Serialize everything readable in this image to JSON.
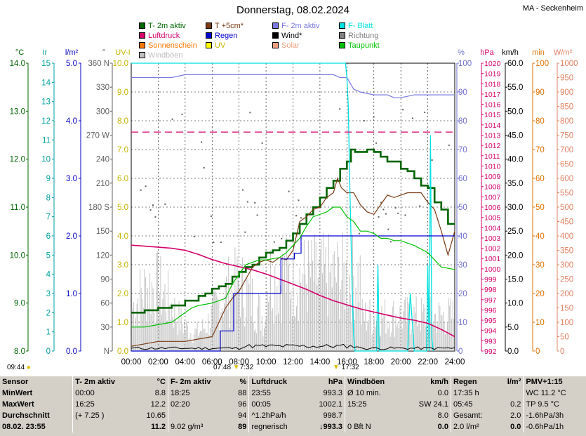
{
  "title": "Donnerstag, 08.02.2024",
  "station": "MA - Seckenheim",
  "legend": [
    {
      "label": "T- 2m aktiv",
      "color": "#006400"
    },
    {
      "label": "T +5cm*",
      "color": "#7a3a12"
    },
    {
      "label": "F- 2m aktiv",
      "color": "#7878e0"
    },
    {
      "label": "F- Blatt",
      "color": "#00e0e0"
    },
    {
      "label": "Luftdruck",
      "color": "#d4006c"
    },
    {
      "label": "Regen",
      "color": "#0000d0"
    },
    {
      "label": "Wind*",
      "color": "#000000"
    },
    {
      "label": "Richtung",
      "color": "#808080"
    },
    {
      "label": "Sonnenschein",
      "color": "#ff7800"
    },
    {
      "label": "UV",
      "color": "#ffff00"
    },
    {
      "label": "Solar",
      "color": "#f0a080"
    },
    {
      "label": "Taupunkt",
      "color": "#00c000"
    },
    {
      "label": "Windböen",
      "color": "#c0c0c0"
    }
  ],
  "axis_units": {
    "temp": "°C",
    "ir": "Ir",
    "rain": "l/m²",
    "dir": "°",
    "uv": "UV-I",
    "hum": "%",
    "press": "hPa",
    "wind": "km/h",
    "min": "min",
    "solar": "W/m²"
  },
  "axes": {
    "temp": [
      "8.0",
      "9.0",
      "10.0",
      "11.0",
      "12.0",
      "13.0",
      "14.0"
    ],
    "ir": [
      "0",
      "1",
      "2",
      "3",
      "4",
      "5",
      "6",
      "7",
      "8",
      "9",
      "10",
      "11",
      "12",
      "13",
      "14",
      "15"
    ],
    "rain": [
      "0.0",
      "1.0",
      "2.0",
      "3.0",
      "4.0",
      "5.0"
    ],
    "dir": [
      "N",
      "30",
      "60",
      "90",
      "120",
      "150",
      "180 S",
      "210",
      "240",
      "270 W",
      "300",
      "330",
      "360 N"
    ],
    "uv": [
      "0.0",
      "1.0",
      "2.0",
      "3.0",
      "4.0",
      "5.0",
      "6.0",
      "7.0",
      "8.0",
      "9.0",
      "10.0"
    ],
    "hum": [
      "0",
      "10",
      "20",
      "30",
      "40",
      "50",
      "60",
      "70",
      "80",
      "90",
      "100"
    ],
    "press": [
      "992",
      "993",
      "994",
      "995",
      "996",
      "997",
      "998",
      "999",
      "1000",
      "1001",
      "1002",
      "1003",
      "1004",
      "1005",
      "1006",
      "1007",
      "1008",
      "1009",
      "1010",
      "1011",
      "1012",
      "1013",
      "1014",
      "1015",
      "1016",
      "1017",
      "1018",
      "1019",
      "1020"
    ],
    "wind": [
      "0.0",
      "5.0",
      "10.0",
      "15.0",
      "20.0",
      "25.0",
      "30.0",
      "35.0",
      "40.0",
      "45.0",
      "50.0",
      "55.0",
      "60.0"
    ],
    "min": [
      "0",
      "10",
      "20",
      "30",
      "40",
      "50",
      "60",
      "70",
      "80",
      "90",
      "100"
    ],
    "solar": [
      "0",
      "50",
      "100",
      "150",
      "200",
      "250",
      "300",
      "350",
      "400",
      "450",
      "500",
      "550",
      "600",
      "650",
      "700",
      "750",
      "800",
      "850",
      "900",
      "950",
      "1000"
    ],
    "time": [
      "00:00",
      "02:00",
      "04:00",
      "06:00",
      "08:00",
      "10:00",
      "12:00",
      "14:00",
      "16:00",
      "18:00",
      "20:00",
      "22:00",
      "24:00"
    ]
  },
  "sun": {
    "rise": "07:48",
    "noon": "7:32",
    "noon_time": "17:32",
    "moon": "09:44"
  },
  "chart_data": {
    "type": "line",
    "x_unit": "hour",
    "xlim": [
      0,
      24
    ],
    "series": [
      {
        "name": "T- 2m aktiv",
        "axis": "temp",
        "ylim": [
          8,
          14
        ],
        "x": [
          0,
          0.5,
          1,
          1.5,
          2,
          3,
          4,
          5,
          5.5,
          6,
          6.5,
          7,
          7.5,
          8,
          8.5,
          9,
          9.5,
          10,
          10.5,
          11,
          11.5,
          12,
          12.5,
          13,
          13.5,
          14,
          14.5,
          15,
          15.5,
          16,
          16.3,
          16.6,
          17,
          17.5,
          18,
          18.5,
          19,
          19.5,
          20,
          20.5,
          21,
          21.5,
          22,
          22.5,
          23,
          23.5,
          24
        ],
        "y": [
          8.8,
          8.8,
          8.85,
          8.85,
          8.9,
          8.95,
          9.05,
          9.15,
          9.2,
          9.3,
          9.35,
          9.4,
          9.55,
          9.65,
          9.75,
          9.8,
          9.95,
          10.05,
          10.1,
          10.15,
          10.3,
          10.45,
          10.65,
          10.85,
          11.0,
          11.2,
          11.4,
          11.55,
          11.8,
          11.95,
          12.2,
          12.15,
          12.15,
          12.2,
          12.15,
          12.05,
          11.95,
          11.95,
          11.8,
          11.75,
          11.6,
          11.45,
          11.4,
          11.1,
          10.95,
          10.65,
          10.65
        ]
      },
      {
        "name": "T +5cm*",
        "axis": "temp",
        "ylim": [
          8,
          14
        ],
        "x": [
          0,
          1,
          2,
          3,
          4,
          5,
          6,
          6.5,
          7,
          7.5,
          8,
          8.5,
          9,
          9.5,
          10,
          10.5,
          11,
          11.5,
          12,
          12.5,
          13,
          13.5,
          14,
          14.5,
          15,
          15.3,
          15.6,
          16,
          16.5,
          17,
          17.5,
          18,
          18.5,
          19,
          19.5,
          20,
          20.5,
          21,
          21.5,
          22,
          22.5,
          23,
          23.5,
          24
        ],
        "y": [
          8.1,
          8.15,
          8.2,
          8.2,
          8.2,
          8.25,
          8.3,
          8.6,
          8.9,
          9.1,
          9.25,
          9.5,
          9.75,
          9.85,
          9.9,
          9.85,
          9.95,
          9.9,
          10.1,
          10.7,
          10.8,
          10.95,
          11.0,
          11.2,
          11.3,
          11.6,
          11.4,
          11.3,
          11.3,
          11.05,
          10.9,
          10.85,
          11.05,
          11.25,
          11.2,
          11.25,
          11.3,
          11.3,
          11.3,
          11.1,
          10.95,
          10.5,
          10.0,
          10.5
        ]
      },
      {
        "name": "F- 2m aktiv",
        "axis": "hum",
        "ylim": [
          0,
          100
        ],
        "x": [
          0,
          1,
          2,
          3,
          4,
          5,
          6,
          7,
          8,
          9,
          10,
          11,
          12,
          13,
          14,
          15,
          15.5,
          16,
          16.5,
          17,
          18,
          19,
          19.5,
          20,
          21,
          22,
          23,
          24
        ],
        "y": [
          95,
          95,
          95,
          95,
          96,
          96,
          96,
          96,
          96,
          96,
          96,
          96,
          96,
          96,
          96,
          96,
          95,
          95,
          91,
          90,
          89,
          89,
          88,
          88,
          89,
          89,
          89,
          89
        ]
      },
      {
        "name": "F- Blatt",
        "axis": "hum",
        "ylim": [
          0,
          100
        ],
        "x": [
          0,
          15.9,
          16,
          16.1,
          16.2,
          16.3,
          16.4,
          16.5,
          16.6,
          18.2,
          18.3,
          18.4,
          20.5,
          20.7,
          21.0,
          21.9,
          22.0,
          22.1,
          22.2,
          22.3,
          22.4
        ],
        "y": [
          100,
          100,
          95,
          85,
          60,
          40,
          20,
          5,
          0,
          0,
          30,
          0,
          0,
          20,
          0,
          0,
          30,
          0,
          75,
          5,
          0
        ]
      },
      {
        "name": "Luftdruck",
        "axis": "press",
        "ylim": [
          992,
          1020
        ],
        "x": [
          0,
          1,
          2,
          3,
          4,
          5,
          6,
          7,
          8,
          9,
          10,
          11,
          12,
          13,
          14,
          15,
          16,
          17,
          18,
          19,
          20,
          21,
          22,
          23,
          24
        ],
        "y": [
          1002.3,
          1002.2,
          1002.1,
          1002.0,
          1001.8,
          1001.4,
          1000.9,
          1000.5,
          1000.2,
          999.9,
          999.5,
          999.0,
          998.5,
          998.0,
          997.4,
          996.9,
          996.5,
          996.1,
          995.8,
          995.5,
          995.2,
          995.0,
          994.7,
          994.1,
          993.4
        ]
      },
      {
        "name": "Regen",
        "axis": "rain",
        "ylim": [
          0,
          5
        ],
        "x": [
          0,
          6.5,
          6.6,
          7.5,
          7.6,
          11.0,
          11.1,
          12.0,
          12.1,
          12.5,
          12.6,
          13.0,
          13.1,
          24
        ],
        "y": [
          0,
          0,
          0.35,
          0.35,
          1.0,
          1.0,
          1.6,
          1.6,
          1.7,
          1.7,
          2.0,
          2.0,
          2.0,
          2.0
        ]
      },
      {
        "name": "Taupunkt",
        "axis": "temp",
        "ylim": [
          8,
          14
        ],
        "x": [
          0,
          1,
          2,
          3,
          4,
          4.5,
          5,
          6,
          7,
          7.5,
          8,
          8.5,
          9,
          9.5,
          10,
          11,
          11.5,
          12,
          12.5,
          13,
          13.5,
          14,
          14.5,
          15,
          15.5,
          16,
          16.5,
          17,
          17.5,
          18,
          18.5,
          19,
          19.5,
          20,
          21,
          22,
          23,
          24
        ],
        "y": [
          8.5,
          8.5,
          8.55,
          8.6,
          8.8,
          8.9,
          8.95,
          9.0,
          9.1,
          9.4,
          9.6,
          9.8,
          9.85,
          9.9,
          9.9,
          9.95,
          10.05,
          10.2,
          10.35,
          10.6,
          10.8,
          10.85,
          10.9,
          11.0,
          11.0,
          10.8,
          10.7,
          10.5,
          10.5,
          10.45,
          10.35,
          10.35,
          10.3,
          10.3,
          10.2,
          10.05,
          9.75,
          9.7
        ]
      },
      {
        "name": "Luftdruck Tendenz",
        "axis": "press",
        "ylim": [
          992,
          1020
        ],
        "x": [
          0,
          24
        ],
        "y": [
          1013.3,
          1013.3
        ]
      }
    ]
  },
  "stats": {
    "headers": [
      "Sensor",
      "T- 2m aktiv",
      "°C",
      "F- 2m aktiv",
      "%",
      "Luftdruck",
      "hPa",
      "Windböen",
      "km/h",
      "Regen",
      "l/m²",
      "PMV+1:15"
    ],
    "rows": [
      [
        "MinWert",
        "00:00",
        "8.8",
        "18:25",
        "88",
        "23:55",
        "993.3",
        "Ø 10 min.",
        "0.0",
        "17:35 h",
        "",
        "WC 11.2 °C"
      ],
      [
        "MaxWert",
        "16:25",
        "12.2",
        "02:20",
        "96",
        "00:05",
        "1002.1",
        "15:25",
        "SW 24.1",
        "05:45",
        "0.2",
        "TP 9.5 °C"
      ],
      [
        "Durchschnitt",
        "(+ 7.25 )",
        "10.65",
        "",
        "94",
        "^1.2hPa/h",
        "998.7",
        "",
        "8.0",
        "Gesamt:",
        "2.0",
        "-1.6hPa/3h"
      ],
      [
        "08.02. 23:55",
        "",
        "11.2",
        "9.02 g/m³",
        "89",
        "regnerisch",
        "↓993.3",
        "0 Bft N",
        "0.0",
        "2.0 l/m²",
        "0.0",
        "-0.6hPa/1h"
      ]
    ]
  }
}
